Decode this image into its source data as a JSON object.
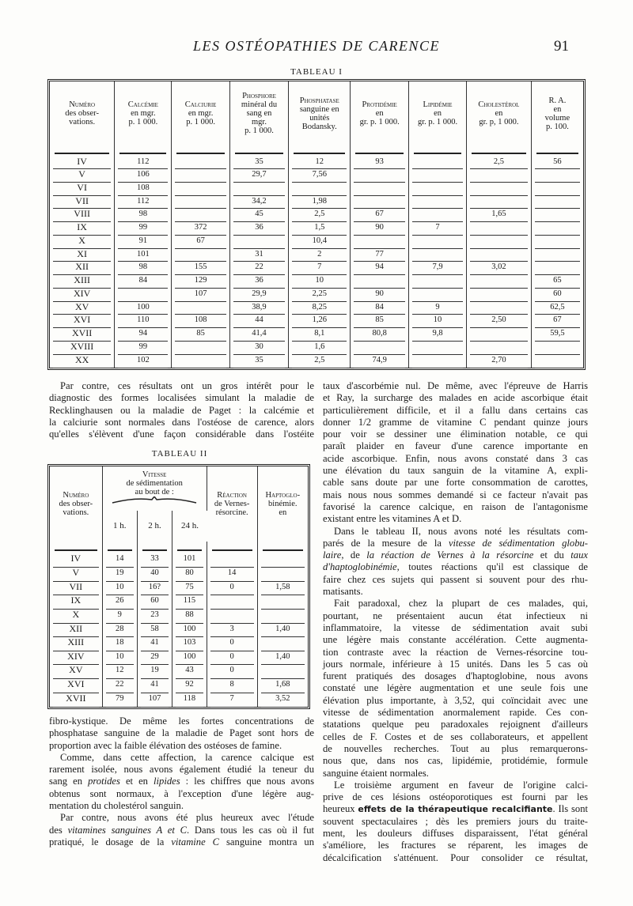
{
  "header": {
    "running_title": "LES OSTÉOPATHIES DE CARENCE",
    "page_number": "91"
  },
  "table1": {
    "caption": "TABLEAU I",
    "columns": [
      {
        "sc": "Numéro",
        "rest": [
          "des obser-",
          "vations."
        ]
      },
      {
        "sc": "Calcémie",
        "rest": [
          "en mgr.",
          "p. 1 000."
        ]
      },
      {
        "sc": "Calciurie",
        "rest": [
          "en mgr.",
          "p. 1 000."
        ]
      },
      {
        "sc": "Phosphore",
        "rest": [
          "minéral du",
          "sang en",
          "mgr.",
          "p. 1 000."
        ]
      },
      {
        "sc": "Phosphatase",
        "rest": [
          "sanguine en",
          "unités",
          "Bodansky."
        ]
      },
      {
        "sc": "Protidémie",
        "rest": [
          "en",
          "gr. p. 1 000."
        ]
      },
      {
        "sc": "Lipidémie",
        "rest": [
          "en",
          "gr. p. 1 000."
        ]
      },
      {
        "sc": "Cholestérol",
        "rest": [
          "en",
          "gr. p, 1 000."
        ]
      },
      {
        "sc": "R. A.",
        "rest": [
          "en",
          "volume",
          "p. 100."
        ]
      }
    ],
    "rows": [
      [
        "IV",
        "112",
        "",
        "35",
        "12",
        "93",
        "",
        "2,5",
        "56"
      ],
      [
        "V",
        "106",
        "",
        "29,7",
        "7,56",
        "",
        "",
        "",
        ""
      ],
      [
        "VI",
        "108",
        "",
        "",
        "",
        "",
        "",
        "",
        ""
      ],
      [
        "VII",
        "112",
        "",
        "34,2",
        "1,98",
        "",
        "",
        "",
        ""
      ],
      [
        "VIII",
        "98",
        "",
        "45",
        "2,5",
        "67",
        "",
        "1,65",
        ""
      ],
      [
        "IX",
        "99",
        "372",
        "36",
        "1,5",
        "90",
        "7",
        "",
        ""
      ],
      [
        "X",
        "91",
        "67",
        "",
        "10,4",
        "",
        "",
        "",
        ""
      ],
      [
        "XI",
        "101",
        "",
        "31",
        "2",
        "77",
        "",
        "",
        ""
      ],
      [
        "XII",
        "98",
        "155",
        "22",
        "7",
        "94",
        "7,9",
        "3,02",
        ""
      ],
      [
        "XIII",
        "84",
        "129",
        "36",
        "10",
        "",
        "",
        "",
        "65"
      ],
      [
        "XIV",
        "",
        "107",
        "29,9",
        "2,25",
        "90",
        "",
        "",
        "60"
      ],
      [
        "XV",
        "100",
        "",
        "38,9",
        "8,25",
        "84",
        "9",
        "",
        "62,5"
      ],
      [
        "XVI",
        "110",
        "108",
        "44",
        "1,26",
        "85",
        "10",
        "2,50",
        "67"
      ],
      [
        "XVII",
        "94",
        "85",
        "41,4",
        "8,1",
        "80,8",
        "9,8",
        "",
        "59,5"
      ],
      [
        "XVIII",
        "99",
        "",
        "30",
        "1,6",
        "",
        "",
        "",
        ""
      ],
      [
        "XX",
        "102",
        "",
        "35",
        "2,5",
        "74,9",
        "",
        "2,70",
        ""
      ]
    ]
  },
  "table2": {
    "caption": "TABLEAU II",
    "col_numero": {
      "sc": "Numéro",
      "rest": [
        "des obser-",
        "vations."
      ]
    },
    "col_vitesse": {
      "sc": "Vitesse",
      "rest": [
        "de sédimentation",
        "au bout de :"
      ]
    },
    "sub_columns": [
      "1 h.",
      "2 h.",
      "24 h."
    ],
    "col_reaction": {
      "sc": "Réaction",
      "rest": [
        "de Vernes-",
        "résorcine."
      ]
    },
    "col_hapto": {
      "sc": "Haptoglo-",
      "rest": [
        "binémie.",
        "en"
      ]
    },
    "rows": [
      [
        "IV",
        "14",
        "33",
        "101",
        "",
        ""
      ],
      [
        "V",
        "19",
        "40",
        "80",
        "14",
        ""
      ],
      [
        "VII",
        "10",
        "16?",
        "75",
        "0",
        "1,58"
      ],
      [
        "IX",
        "26",
        "60",
        "115",
        "",
        ""
      ],
      [
        "X",
        "9",
        "23",
        "88",
        "",
        ""
      ],
      [
        "XII",
        "28",
        "58",
        "100",
        "3",
        "1,40"
      ],
      [
        "XIII",
        "18",
        "41",
        "103",
        "0",
        ""
      ],
      [
        "XIV",
        "10",
        "29",
        "100",
        "0",
        "1,40"
      ],
      [
        "XV",
        "12",
        "19",
        "43",
        "0",
        ""
      ],
      [
        "XVI",
        "22",
        "41",
        "92",
        "8",
        "1,68"
      ],
      [
        "XVII",
        "79",
        "107",
        "118",
        "7",
        "3,52"
      ]
    ]
  },
  "left_top": [
    {
      "indent": true,
      "lines": [
        [
          "Par contre, ces résultats ont un gros intérêt pour le"
        ],
        [
          "diagnostic des formes localisées simulant la maladie de"
        ],
        [
          "Recklinghausen ou la maladie de Paget : la calcémie et"
        ],
        [
          "la calciurie sont normales dans l'ostéose de carence, alors"
        ],
        [
          "qu'elles s'élèvent d'une façon considérable dans l'ostéite"
        ]
      ],
      "continues": true
    }
  ],
  "left_bottom": [
    {
      "indent": false,
      "lines": [
        [
          "fibro-kystique. De même les fortes concentrations de"
        ],
        [
          "phosphatase sanguine de la maladie de Paget sont hors de"
        ],
        [
          "proportion avec la faible élévation des ostéoses de famine."
        ]
      ]
    },
    {
      "indent": true,
      "lines": [
        [
          "Comme, dans cette affection, la carence calcique est"
        ],
        [
          "rarement isolée, nous avons également étudié la teneur du"
        ],
        [
          "sang en ",
          {
            "i": "protides"
          },
          " et en ",
          {
            "i": "lipides"
          },
          " : les chiffres que nous avons"
        ],
        [
          "obtenus sont normaux, à l'exception d'une légère aug-"
        ],
        [
          "mentation du cholestérol sanguin."
        ]
      ]
    },
    {
      "indent": true,
      "lines": [
        [
          "Par contre, nous avons été plus heureux avec l'étude"
        ],
        [
          "des ",
          {
            "i": "vitamines sanguines A et C"
          },
          ". Dans tous les cas où il fut"
        ],
        [
          "pratiqué, le dosage de la ",
          {
            "i": "vitamine C"
          },
          " sanguine montra un"
        ]
      ],
      "continues": true
    }
  ],
  "right": [
    {
      "indent": false,
      "lines": [
        [
          "taux d'ascorbémie nul. De même, avec l'épreuve de Harris"
        ],
        [
          "et Ray, la surcharge des malades en acide ascorbique était"
        ],
        [
          "particulièrement difficile, et il a fallu dans certains cas"
        ],
        [
          "donner 1/2 gramme de vitamine C pendant quinze jours"
        ],
        [
          "pour voir se dessiner une élimination notable, ce qui"
        ],
        [
          "paraît plaider en faveur d'une carence importante en"
        ],
        [
          "acide ascorbique. Enfin, nous avons constaté dans 3 cas"
        ],
        [
          "une élévation du taux sanguin de la vitamine A, expli-"
        ],
        [
          "cable sans doute par une forte consommation de carottes,"
        ],
        [
          "mais nous nous sommes demandé si ce facteur n'avait pas"
        ],
        [
          "favorisé la carence calcique, en raison de l'antagonisme"
        ],
        [
          "existant entre les vitamines A et D."
        ]
      ]
    },
    {
      "indent": true,
      "lines": [
        [
          "Dans le tableau II, nous avons noté les résultats com-"
        ],
        [
          "parés de la mesure de la ",
          {
            "i": "vitesse de sédimentation globu-"
          }
        ],
        [
          {
            "i": "laire"
          },
          ", de ",
          {
            "i": "la réaction de Vernes à la résorcine"
          },
          " et du ",
          {
            "i": "taux"
          }
        ],
        [
          {
            "i": "d'haptoglobinémie"
          },
          ", toutes réactions qu'il est classique de"
        ],
        [
          "faire chez ces sujets qui passent si souvent pour des rhu-"
        ],
        [
          "matisants."
        ]
      ]
    },
    {
      "indent": true,
      "lines": [
        [
          "Fait paradoxal, chez la plupart de ces malades, qui,"
        ],
        [
          "pourtant, ne présentaient aucun état infectieux ni"
        ],
        [
          "inflammatoire, la vitesse de sédimentation avait subi"
        ],
        [
          "une légère mais constante accélération. Cette augmenta-"
        ],
        [
          "tion contraste avec la réaction de Vernes-résorcine tou-"
        ],
        [
          "jours normale, inférieure à 15 unités. Dans les 5 cas où"
        ],
        [
          "furent pratiqués des dosages d'haptoglobine, nous avons"
        ],
        [
          "constaté une légère augmentation et une seule fois une"
        ],
        [
          "élévation plus importante, à 3,52, qui coïncidait avec une"
        ],
        [
          "vitesse de sédimentation anormalement rapide. Ces con-"
        ],
        [
          "statations quelque peu paradoxales rejoignent d'ailleurs"
        ],
        [
          "celles de F. Costes et de ses collaborateurs, et appellent"
        ],
        [
          "de nouvelles recherches. Tout au plus remarquerons-"
        ],
        [
          "nous que, dans nos cas, lipidémie, protidémie, formule"
        ],
        [
          "sanguine étaient normales."
        ]
      ]
    },
    {
      "indent": true,
      "lines": [
        [
          "Le troisième argument en faveur de l'origine calci-"
        ],
        [
          "prive de ces lésions ostéoporotiques est fourni par les"
        ],
        [
          "heureux ",
          {
            "b": "effets de la thérapeutique recalcifiante"
          },
          ". Ils sont"
        ],
        [
          "souvent spectaculaires ; dès les premiers jours du traite-"
        ],
        [
          "ment, les douleurs diffuses disparaissent, l'état général"
        ],
        [
          "s'améliore, les fractures se réparent, les images de"
        ],
        [
          "décalcification s'atténuent. Pour consolider ce résultat,"
        ]
      ],
      "continues": true
    }
  ]
}
